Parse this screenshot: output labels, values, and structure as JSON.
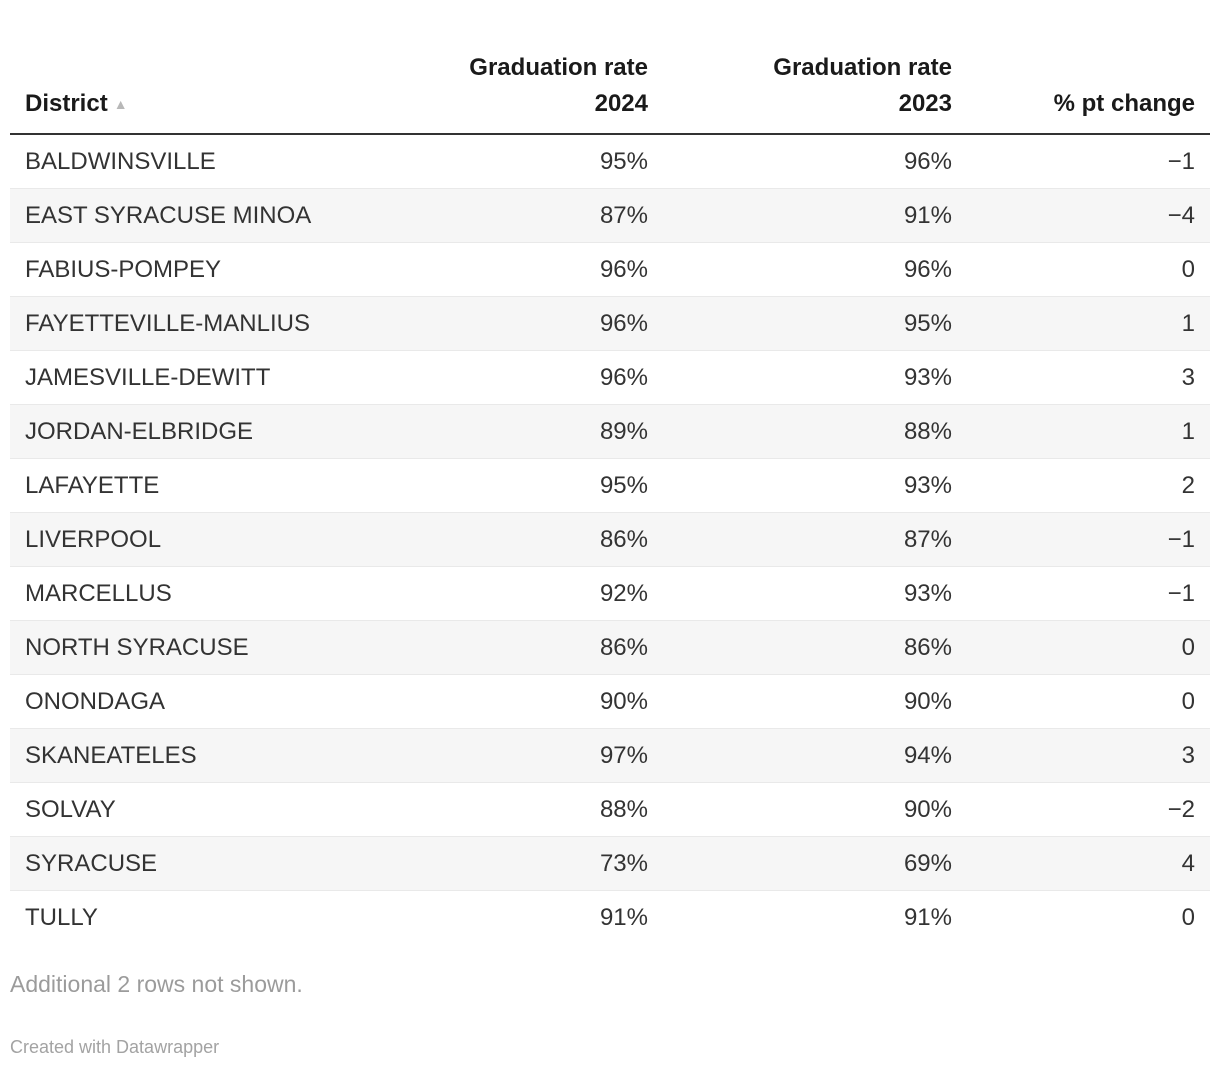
{
  "accent_colors": {
    "header_text": "#1a1a1a",
    "header_rule": "#333333",
    "body_text": "#333333",
    "stripe": "#f6f6f6",
    "row_divider": "#e9e9e9",
    "muted_text": "#9b9b9b",
    "sort_arrow": "#b8b8b8"
  },
  "table": {
    "columns": [
      {
        "label": "District",
        "sort_indicator": "▲"
      },
      {
        "label_line1": "Graduation rate",
        "label_line2": "2024"
      },
      {
        "label_line1": "Graduation rate",
        "label_line2": "2023"
      },
      {
        "label": "% pt change"
      }
    ],
    "rows": [
      {
        "district": "BALDWINSVILLE",
        "rate_2024": "95%",
        "rate_2023": "96%",
        "change": "−1"
      },
      {
        "district": "EAST SYRACUSE MINOA",
        "rate_2024": "87%",
        "rate_2023": "91%",
        "change": "−4"
      },
      {
        "district": "FABIUS-POMPEY",
        "rate_2024": "96%",
        "rate_2023": "96%",
        "change": "0"
      },
      {
        "district": "FAYETTEVILLE-MANLIUS",
        "rate_2024": "96%",
        "rate_2023": "95%",
        "change": "1"
      },
      {
        "district": "JAMESVILLE-DEWITT",
        "rate_2024": "96%",
        "rate_2023": "93%",
        "change": "3"
      },
      {
        "district": "JORDAN-ELBRIDGE",
        "rate_2024": "89%",
        "rate_2023": "88%",
        "change": "1"
      },
      {
        "district": "LAFAYETTE",
        "rate_2024": "95%",
        "rate_2023": "93%",
        "change": "2"
      },
      {
        "district": "LIVERPOOL",
        "rate_2024": "86%",
        "rate_2023": "87%",
        "change": "−1"
      },
      {
        "district": "MARCELLUS",
        "rate_2024": "92%",
        "rate_2023": "93%",
        "change": "−1"
      },
      {
        "district": "NORTH SYRACUSE",
        "rate_2024": "86%",
        "rate_2023": "86%",
        "change": "0"
      },
      {
        "district": "ONONDAGA",
        "rate_2024": "90%",
        "rate_2023": "90%",
        "change": "0"
      },
      {
        "district": "SKANEATELES",
        "rate_2024": "97%",
        "rate_2023": "94%",
        "change": "3"
      },
      {
        "district": "SOLVAY",
        "rate_2024": "88%",
        "rate_2023": "90%",
        "change": "−2"
      },
      {
        "district": "SYRACUSE",
        "rate_2024": "73%",
        "rate_2023": "69%",
        "change": "4"
      },
      {
        "district": "TULLY",
        "rate_2024": "91%",
        "rate_2023": "91%",
        "change": "0"
      }
    ],
    "note": "Additional 2 rows not shown.",
    "credit": "Created with Datawrapper"
  },
  "chart_data": {
    "type": "table",
    "title": "",
    "columns": [
      "District",
      "Graduation rate 2024",
      "Graduation rate 2023",
      "% pt change"
    ],
    "rows": [
      [
        "BALDWINSVILLE",
        "95%",
        "96%",
        -1
      ],
      [
        "EAST SYRACUSE MINOA",
        "87%",
        "91%",
        -4
      ],
      [
        "FABIUS-POMPEY",
        "96%",
        "96%",
        0
      ],
      [
        "FAYETTEVILLE-MANLIUS",
        "96%",
        "95%",
        1
      ],
      [
        "JAMESVILLE-DEWITT",
        "96%",
        "93%",
        3
      ],
      [
        "JORDAN-ELBRIDGE",
        "89%",
        "88%",
        1
      ],
      [
        "LAFAYETTE",
        "95%",
        "93%",
        2
      ],
      [
        "LIVERPOOL",
        "86%",
        "87%",
        -1
      ],
      [
        "MARCELLUS",
        "92%",
        "93%",
        -1
      ],
      [
        "NORTH SYRACUSE",
        "86%",
        "86%",
        0
      ],
      [
        "ONONDAGA",
        "90%",
        "90%",
        0
      ],
      [
        "SKANEATELES",
        "97%",
        "94%",
        3
      ],
      [
        "SOLVAY",
        "88%",
        "90%",
        -2
      ],
      [
        "SYRACUSE",
        "73%",
        "69%",
        4
      ],
      [
        "TULLY",
        "91%",
        "91%",
        0
      ]
    ],
    "sort": {
      "column": "District",
      "direction": "ascending"
    },
    "note": "Additional 2 rows not shown.",
    "credit": "Created with Datawrapper",
    "layout_hints": {
      "striped_rows": true,
      "numeric_alignment": "right",
      "header_rule": "2px solid dark"
    }
  }
}
